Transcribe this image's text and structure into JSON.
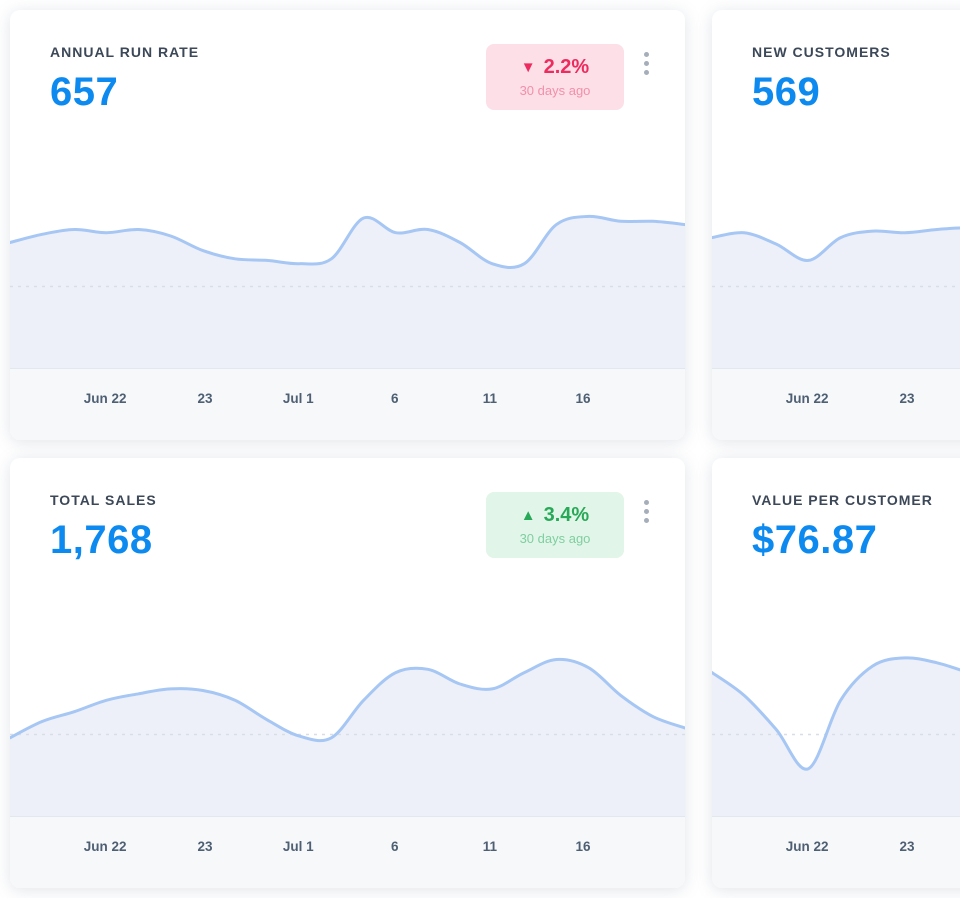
{
  "colors": {
    "accent_blue": "#0d8af0",
    "negative": "#ee2b5e",
    "negative_bg": "#fcdfe7",
    "negative_sub": "#f290ab",
    "positive": "#27a958",
    "positive_bg": "#e2f5e9",
    "positive_sub": "#7fcfa0",
    "chart_line": "#a6c6f4",
    "chart_fill": "#edf0f8",
    "title_text": "#3c4858",
    "axis_text": "#4f5f73",
    "footer_bg": "#f6f8fa",
    "divider": "#e3e7ee",
    "gridline": "#d9dde6",
    "kebab": "#a6aeba"
  },
  "cards": [
    {
      "title": "ANNUAL RUN RATE",
      "value": "657",
      "badge": {
        "direction": "down",
        "icon": "▼",
        "percent": "2.2%",
        "subtitle": "30 days ago"
      },
      "x_labels": [
        "Jun 22",
        "23",
        "Jul 1",
        "6",
        "11",
        "16"
      ]
    },
    {
      "title": "NEW CUSTOMERS",
      "value": "569",
      "x_labels": [
        "Jun 22",
        "23"
      ]
    },
    {
      "title": "TOTAL SALES",
      "value": "1,768",
      "badge": {
        "direction": "up",
        "icon": "▲",
        "percent": "3.4%",
        "subtitle": "30 days ago"
      },
      "x_labels": [
        "Jun 22",
        "23",
        "Jul 1",
        "6",
        "11",
        "16"
      ]
    },
    {
      "title": "VALUE PER CUSTOMER",
      "value": "$76.87",
      "x_labels": [
        "Jun 22",
        "23"
      ]
    }
  ],
  "chart_data": [
    {
      "type": "area",
      "title": "Annual Run Rate sparkline",
      "x_ticks": [
        "Jun 22",
        "23",
        "Jul 1",
        "6",
        "11",
        "16"
      ],
      "ylim": [
        0,
        100
      ],
      "y_axis": "unlabeled sparkline (values are relative 0-100 estimates)",
      "grid": "single dashed horizontal midline",
      "legend": "none",
      "values": [
        77,
        82,
        85,
        83,
        85,
        81,
        72,
        67,
        66,
        64,
        67,
        92,
        83,
        85,
        77,
        64,
        64,
        88,
        93,
        90,
        90,
        88
      ]
    },
    {
      "type": "area",
      "title": "New Customers sparkline",
      "x_ticks": [
        "Jun 22",
        "23"
      ],
      "ylim": [
        0,
        100
      ],
      "y_axis": "unlabeled sparkline (values are relative 0-100 estimates; card clipped at right edge)",
      "grid": "single dashed horizontal midline",
      "legend": "none",
      "values": [
        80,
        83,
        76,
        66,
        80,
        84,
        83,
        85,
        86,
        85,
        83,
        81,
        83,
        85,
        83,
        80,
        82,
        85,
        86,
        84,
        83,
        84
      ]
    },
    {
      "type": "area",
      "title": "Total Sales sparkline",
      "x_ticks": [
        "Jun 22",
        "23",
        "Jul 1",
        "6",
        "11",
        "16"
      ],
      "ylim": [
        0,
        100
      ],
      "y_axis": "unlabeled sparkline (values are relative 0-100 estimates)",
      "grid": "single dashed horizontal midline",
      "legend": "none",
      "values": [
        48,
        58,
        64,
        71,
        75,
        78,
        77,
        71,
        59,
        49,
        48,
        71,
        88,
        90,
        81,
        78,
        88,
        96,
        91,
        74,
        61,
        54
      ]
    },
    {
      "type": "area",
      "title": "Value Per Customer sparkline",
      "x_ticks": [
        "Jun 22",
        "23"
      ],
      "ylim": [
        0,
        100
      ],
      "y_axis": "unlabeled sparkline (values are relative 0-100 estimates; card clipped at right edge)",
      "grid": "single dashed horizontal midline",
      "legend": "none",
      "values": [
        88,
        74,
        53,
        29,
        71,
        92,
        97,
        94,
        88,
        84,
        81,
        83,
        86,
        83,
        79,
        81,
        85,
        88,
        85,
        82,
        83,
        84
      ]
    }
  ]
}
